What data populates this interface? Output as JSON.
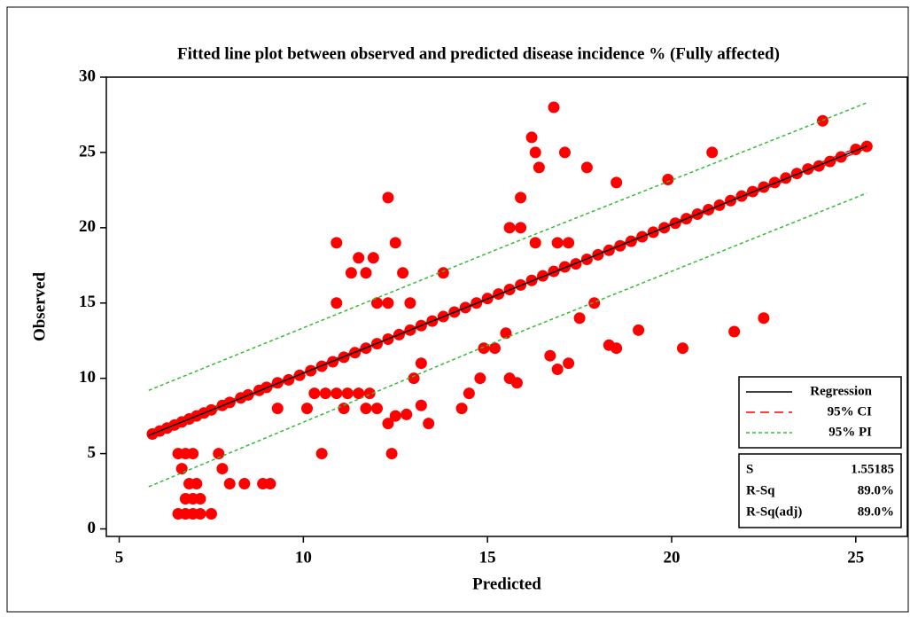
{
  "chart_data": {
    "type": "scatter",
    "title": "Fitted line plot between observed and predicted disease incidence % (Fully affected)",
    "x_label": "Predicted",
    "y_label": "Observed",
    "xlim": [
      4.65,
      26.4
    ],
    "ylim": [
      -0.5,
      30
    ],
    "xticks": [
      5,
      10,
      15,
      20,
      25
    ],
    "yticks": [
      0,
      5,
      10,
      15,
      20,
      25,
      30
    ],
    "points": {
      "color": "#ff0000",
      "x": [
        5.9,
        6.1,
        6.3,
        6.5,
        6.7,
        6.9,
        7.1,
        7.3,
        7.5,
        7.8,
        8.0,
        8.3,
        8.5,
        8.8,
        9.0,
        9.3,
        9.6,
        9.9,
        10.2,
        10.5,
        10.8,
        11.1,
        11.4,
        11.7,
        12.0,
        12.3,
        12.6,
        12.9,
        13.2,
        13.5,
        13.8,
        14.1,
        14.4,
        14.7,
        15.0,
        15.3,
        15.6,
        15.9,
        16.2,
        16.5,
        16.8,
        17.1,
        17.4,
        17.7,
        18.0,
        18.3,
        18.6,
        18.9,
        19.2,
        19.5,
        19.8,
        20.1,
        20.4,
        20.7,
        21.0,
        21.3,
        21.6,
        21.9,
        22.2,
        22.5,
        22.8,
        23.1,
        23.4,
        23.7,
        24.0,
        24.3,
        24.6,
        25.0,
        25.3,
        6.6,
        6.8,
        7.0,
        6.7,
        6.6,
        6.8,
        7.0,
        7.2,
        7.5,
        6.8,
        7.0,
        7.2,
        6.9,
        7.1,
        7.7,
        7.8,
        8.0,
        8.4,
        8.9,
        9.1,
        9.3,
        10.5,
        10.1,
        10.3,
        10.6,
        10.9,
        11.2,
        11.5,
        11.8,
        10.9,
        10.9,
        11.3,
        11.5,
        11.7,
        11.9,
        12.3,
        12.5,
        12.0,
        12.3,
        11.1,
        11.7,
        12.0,
        12.4,
        12.3,
        12.5,
        12.8,
        13.2,
        13.4,
        12.7,
        12.9,
        13.0,
        13.2,
        13.8,
        14.3,
        14.5,
        14.8,
        14.9,
        15.2,
        15.5,
        15.6,
        15.8,
        15.6,
        15.9,
        15.9,
        16.2,
        16.3,
        16.4,
        16.3,
        16.8,
        17.1,
        16.9,
        17.2,
        17.7,
        16.7,
        16.9,
        17.2,
        17.5,
        17.9,
        18.3,
        18.5,
        18.5,
        19.1,
        19.9,
        20.3,
        21.1,
        21.7,
        22.5,
        24.1
      ],
      "y": [
        6.3,
        6.5,
        6.7,
        6.9,
        7.1,
        7.3,
        7.5,
        7.7,
        7.9,
        8.2,
        8.4,
        8.7,
        8.9,
        9.2,
        9.4,
        9.7,
        9.9,
        10.2,
        10.5,
        10.8,
        11.1,
        11.4,
        11.7,
        12.0,
        12.3,
        12.6,
        12.9,
        13.2,
        13.5,
        13.8,
        14.1,
        14.4,
        14.7,
        15.0,
        15.3,
        15.6,
        15.9,
        16.2,
        16.5,
        16.8,
        17.1,
        17.4,
        17.6,
        17.9,
        18.2,
        18.5,
        18.8,
        19.1,
        19.4,
        19.7,
        20.0,
        20.3,
        20.6,
        20.9,
        21.2,
        21.5,
        21.8,
        22.1,
        22.4,
        22.7,
        23.0,
        23.3,
        23.6,
        23.9,
        24.1,
        24.4,
        24.7,
        25.2,
        25.4,
        5,
        5,
        5,
        4,
        1,
        1,
        1,
        1,
        1,
        2,
        2,
        2,
        3,
        3,
        5,
        4,
        3,
        3,
        3,
        3,
        8,
        5,
        8,
        9,
        9,
        9,
        9,
        9,
        9,
        19,
        15,
        17,
        18,
        17,
        18,
        22,
        19,
        15,
        15,
        8,
        8,
        8,
        5,
        7,
        7.5,
        7.6,
        8.2,
        7,
        17,
        15,
        10,
        11,
        17,
        8,
        9,
        10,
        12,
        12,
        13,
        10,
        9.7,
        20,
        20,
        22,
        26,
        25,
        24,
        19,
        28,
        25,
        19,
        19,
        24,
        11.5,
        10.6,
        11,
        14,
        15,
        12.2,
        12,
        23,
        13.2,
        23.2,
        12,
        25,
        13.1,
        14,
        27.1
      ]
    },
    "regression": {
      "name": "Regression",
      "color": "#000000",
      "x": [
        5.8,
        25.3
      ],
      "y": [
        6.21,
        25.42
      ]
    },
    "bands": [
      {
        "name": "95% CI",
        "color": "#ff0000",
        "dash": "10,6",
        "x": [
          5.8,
          15.5,
          25.3
        ],
        "upper": [
          6.36,
          15.82,
          25.57
        ],
        "lower": [
          6.06,
          15.72,
          25.27
        ]
      },
      {
        "name": "95% PI",
        "color": "#33bb33",
        "dash": "4,3",
        "x": [
          5.8,
          15.5,
          25.3
        ],
        "upper": [
          9.2,
          18.8,
          28.3
        ],
        "lower": [
          2.8,
          12.7,
          22.3
        ]
      }
    ],
    "stats": [
      [
        "S",
        "1.55185"
      ],
      [
        "R-Sq",
        "89.0%"
      ],
      [
        "R-Sq(adj)",
        "89.0%"
      ]
    ]
  }
}
